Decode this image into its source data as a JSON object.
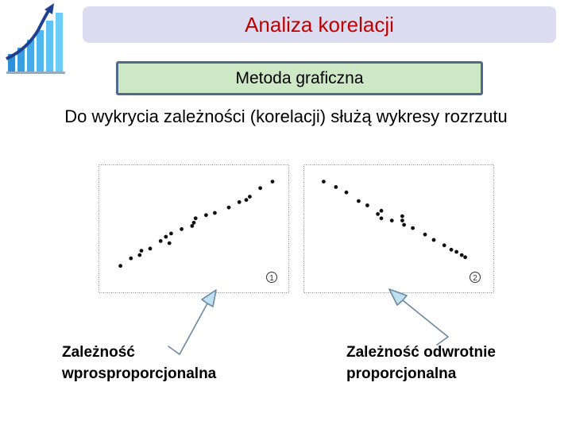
{
  "slide": {
    "title": "Analiza korelacji",
    "subtitle": "Metoda graficzna",
    "description": "Do wykrycia zależności (korelacji) służą wykresy rozrzutu"
  },
  "colors": {
    "title_text": "#c00000",
    "title_box": "#dcdcf0",
    "subtitle_box": "#cde8c4",
    "subtitle_border": "#4f6b88",
    "arrow_fill": "#bfe0ee",
    "arrow_stroke": "#6a88a4"
  },
  "captions": {
    "left": {
      "line1": "Zależność",
      "line2": "wprosproporcjonalna"
    },
    "right": {
      "line1": "Zależność odwrotnie",
      "line2": "proporcjonalna"
    }
  },
  "chart_data": [
    {
      "type": "scatter",
      "label": "①",
      "xlim": [
        0,
        100
      ],
      "ylim": [
        0,
        100
      ],
      "grid": false,
      "points": [
        [
          8,
          12
        ],
        [
          14,
          19
        ],
        [
          19,
          22
        ],
        [
          20,
          26
        ],
        [
          25,
          28
        ],
        [
          31,
          35
        ],
        [
          34,
          39
        ],
        [
          36,
          33
        ],
        [
          37,
          42
        ],
        [
          43,
          46
        ],
        [
          49,
          49
        ],
        [
          50,
          52
        ],
        [
          51,
          56
        ],
        [
          57,
          59
        ],
        [
          62,
          61
        ],
        [
          70,
          66
        ],
        [
          76,
          71
        ],
        [
          80,
          73
        ],
        [
          82,
          76
        ],
        [
          88,
          84
        ],
        [
          95,
          90
        ]
      ]
    },
    {
      "type": "scatter",
      "label": "②",
      "xlim": [
        0,
        100
      ],
      "ylim": [
        0,
        100
      ],
      "grid": false,
      "points": [
        [
          7,
          90
        ],
        [
          14,
          85
        ],
        [
          20,
          80
        ],
        [
          27,
          72
        ],
        [
          32,
          68
        ],
        [
          38,
          60
        ],
        [
          40,
          63
        ],
        [
          40,
          56
        ],
        [
          46,
          54
        ],
        [
          52,
          58
        ],
        [
          52,
          54
        ],
        [
          53,
          50
        ],
        [
          58,
          47
        ],
        [
          65,
          41
        ],
        [
          70,
          36
        ],
        [
          76,
          31
        ],
        [
          80,
          27
        ],
        [
          83,
          25
        ],
        [
          86,
          22
        ],
        [
          88,
          20
        ]
      ]
    }
  ]
}
